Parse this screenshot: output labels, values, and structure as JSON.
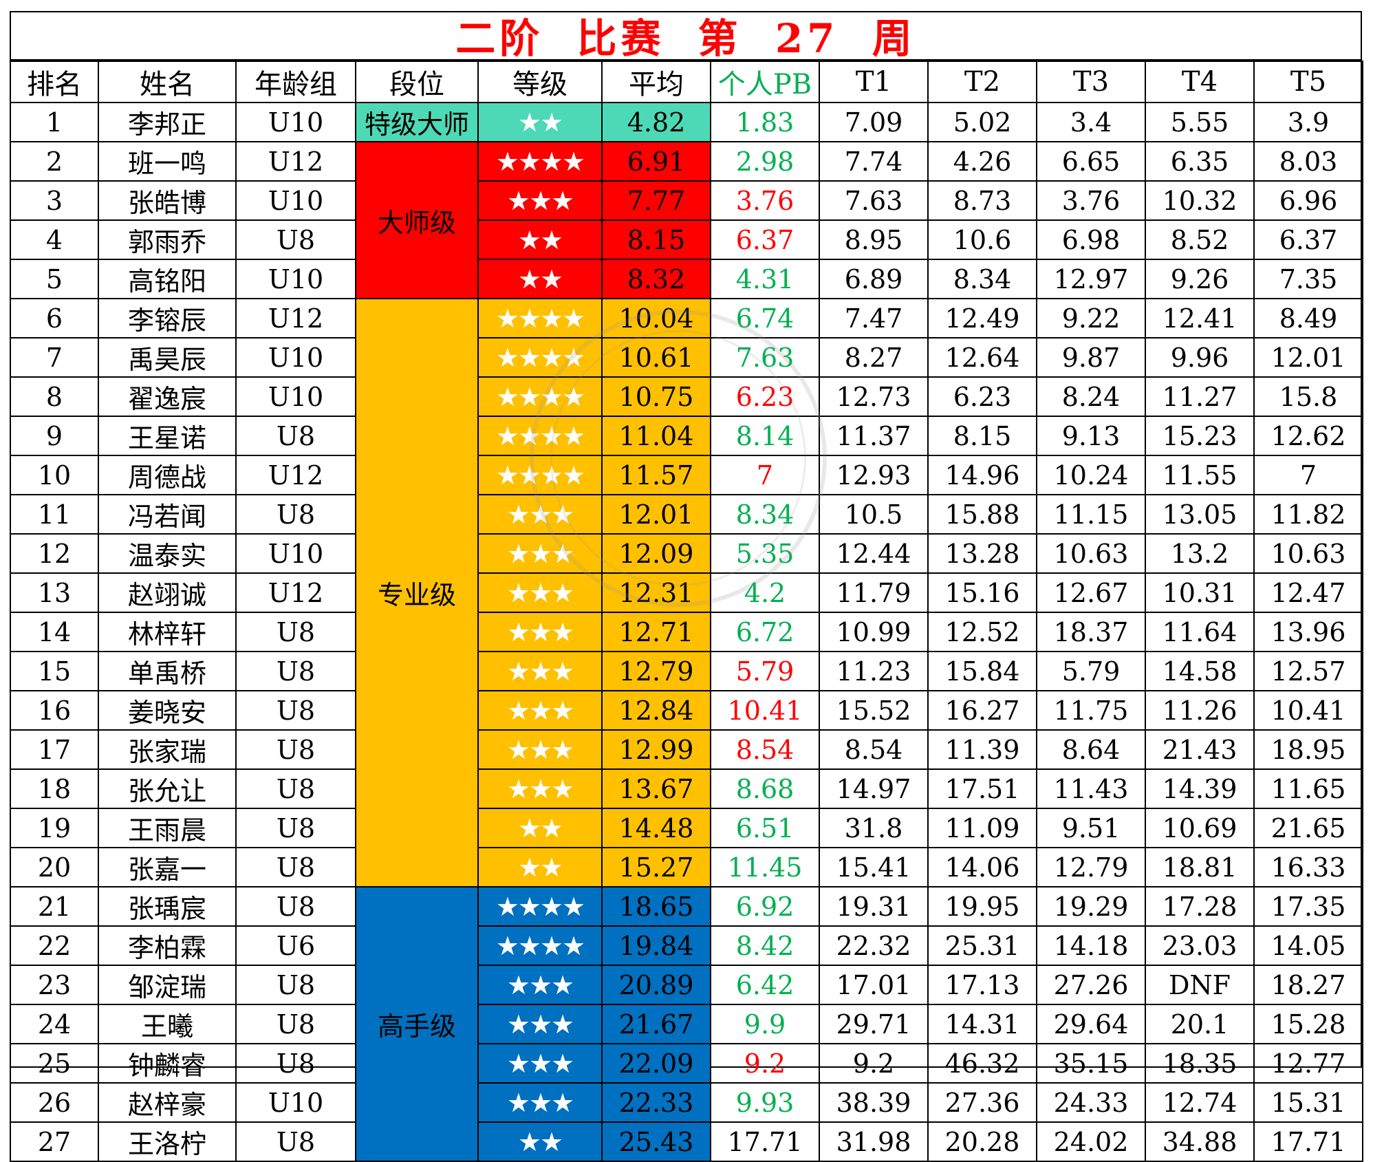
{
  "title": "二阶  比赛   第 27 周",
  "colors": {
    "teal": "#4dd9b5",
    "red": "#ff0000",
    "orange": "#ffc000",
    "blue": "#0070c0",
    "pb_green": "#00b050",
    "pb_red": "#ff0000"
  },
  "headers": [
    "排名",
    "姓名",
    "年龄组",
    "段位",
    "等级",
    "平均",
    "个人PB",
    "T1",
    "T2",
    "T3",
    "T4",
    "T5"
  ],
  "segments": [
    {
      "label": "特级大师",
      "color": "#4dd9b5",
      "rows": 1
    },
    {
      "label": "大师级",
      "color": "#ff0000",
      "rows": 4
    },
    {
      "label": "专业级",
      "color": "#ffc000",
      "rows": 15
    },
    {
      "label": "高手级",
      "color": "#0070c0",
      "rows": 7
    }
  ],
  "rows": [
    {
      "rank": "1",
      "name": "李邦正",
      "age": "U10",
      "stars": "★★",
      "avg": "4.82",
      "pb": "1.83",
      "pb_color": "green",
      "t": [
        "7.09",
        "5.02",
        "3.4",
        "5.55",
        "3.9"
      ]
    },
    {
      "rank": "2",
      "name": "班一鸣",
      "age": "U12",
      "stars": "★★★★",
      "avg": "6.91",
      "pb": "2.98",
      "pb_color": "green",
      "t": [
        "7.74",
        "4.26",
        "6.65",
        "6.35",
        "8.03"
      ]
    },
    {
      "rank": "3",
      "name": "张皓博",
      "age": "U10",
      "stars": "★★★",
      "avg": "7.77",
      "pb": "3.76",
      "pb_color": "red",
      "t": [
        "7.63",
        "8.73",
        "3.76",
        "10.32",
        "6.96"
      ]
    },
    {
      "rank": "4",
      "name": "郭雨乔",
      "age": "U8",
      "stars": "★★",
      "avg": "8.15",
      "pb": "6.37",
      "pb_color": "red",
      "t": [
        "8.95",
        "10.6",
        "6.98",
        "8.52",
        "6.37"
      ]
    },
    {
      "rank": "5",
      "name": "高铭阳",
      "age": "U10",
      "stars": "★★",
      "avg": "8.32",
      "pb": "4.31",
      "pb_color": "green",
      "t": [
        "6.89",
        "8.34",
        "12.97",
        "9.26",
        "7.35"
      ]
    },
    {
      "rank": "6",
      "name": "李镕辰",
      "age": "U12",
      "stars": "★★★★",
      "avg": "10.04",
      "pb": "6.74",
      "pb_color": "green",
      "t": [
        "7.47",
        "12.49",
        "9.22",
        "12.41",
        "8.49"
      ]
    },
    {
      "rank": "7",
      "name": "禹昊辰",
      "age": "U10",
      "stars": "★★★★",
      "avg": "10.61",
      "pb": "7.63",
      "pb_color": "green",
      "t": [
        "8.27",
        "12.64",
        "9.87",
        "9.96",
        "12.01"
      ]
    },
    {
      "rank": "8",
      "name": "翟逸宸",
      "age": "U10",
      "stars": "★★★★",
      "avg": "10.75",
      "pb": "6.23",
      "pb_color": "red",
      "t": [
        "12.73",
        "6.23",
        "8.24",
        "11.27",
        "15.8"
      ]
    },
    {
      "rank": "9",
      "name": "王星诺",
      "age": "U8",
      "stars": "★★★★",
      "avg": "11.04",
      "pb": "8.14",
      "pb_color": "green",
      "t": [
        "11.37",
        "8.15",
        "9.13",
        "15.23",
        "12.62"
      ]
    },
    {
      "rank": "10",
      "name": "周德战",
      "age": "U12",
      "stars": "★★★★",
      "avg": "11.57",
      "pb": "7",
      "pb_color": "red",
      "t": [
        "12.93",
        "14.96",
        "10.24",
        "11.55",
        "7"
      ]
    },
    {
      "rank": "11",
      "name": "冯若闻",
      "age": "U8",
      "stars": "★★★",
      "avg": "12.01",
      "pb": "8.34",
      "pb_color": "green",
      "t": [
        "10.5",
        "15.88",
        "11.15",
        "13.05",
        "11.82"
      ]
    },
    {
      "rank": "12",
      "name": "温泰实",
      "age": "U10",
      "stars": "★★★",
      "avg": "12.09",
      "pb": "5.35",
      "pb_color": "green",
      "t": [
        "12.44",
        "13.28",
        "10.63",
        "13.2",
        "10.63"
      ]
    },
    {
      "rank": "13",
      "name": "赵翊诚",
      "age": "U12",
      "stars": "★★★",
      "avg": "12.31",
      "pb": "4.2",
      "pb_color": "green",
      "t": [
        "11.79",
        "15.16",
        "12.67",
        "10.31",
        "12.47"
      ]
    },
    {
      "rank": "14",
      "name": "林梓轩",
      "age": "U8",
      "stars": "★★★",
      "avg": "12.71",
      "pb": "6.72",
      "pb_color": "green",
      "t": [
        "10.99",
        "12.52",
        "18.37",
        "11.64",
        "13.96"
      ]
    },
    {
      "rank": "15",
      "name": "单禹桥",
      "age": "U8",
      "stars": "★★★",
      "avg": "12.79",
      "pb": "5.79",
      "pb_color": "red",
      "t": [
        "11.23",
        "15.84",
        "5.79",
        "14.58",
        "12.57"
      ]
    },
    {
      "rank": "16",
      "name": "姜晓安",
      "age": "U8",
      "stars": "★★★",
      "avg": "12.84",
      "pb": "10.41",
      "pb_color": "red",
      "t": [
        "15.52",
        "16.27",
        "11.75",
        "11.26",
        "10.41"
      ]
    },
    {
      "rank": "17",
      "name": "张家瑞",
      "age": "U8",
      "stars": "★★★",
      "avg": "12.99",
      "pb": "8.54",
      "pb_color": "red",
      "t": [
        "8.54",
        "11.39",
        "8.64",
        "21.43",
        "18.95"
      ]
    },
    {
      "rank": "18",
      "name": "张允让",
      "age": "U8",
      "stars": "★★★",
      "avg": "13.67",
      "pb": "8.68",
      "pb_color": "green",
      "t": [
        "14.97",
        "17.51",
        "11.43",
        "14.39",
        "11.65"
      ]
    },
    {
      "rank": "19",
      "name": "王雨晨",
      "age": "U8",
      "stars": "★★",
      "avg": "14.48",
      "pb": "6.51",
      "pb_color": "green",
      "t": [
        "31.8",
        "11.09",
        "9.51",
        "10.69",
        "21.65"
      ]
    },
    {
      "rank": "20",
      "name": "张嘉一",
      "age": "U8",
      "stars": "★★",
      "avg": "15.27",
      "pb": "11.45",
      "pb_color": "green",
      "t": [
        "15.41",
        "14.06",
        "12.79",
        "18.81",
        "16.33"
      ]
    },
    {
      "rank": "21",
      "name": "张瑀宸",
      "age": "U8",
      "stars": "★★★★",
      "avg": "18.65",
      "pb": "6.92",
      "pb_color": "green",
      "t": [
        "19.31",
        "19.95",
        "19.29",
        "17.28",
        "17.35"
      ]
    },
    {
      "rank": "22",
      "name": "李柏霖",
      "age": "U6",
      "stars": "★★★★",
      "avg": "19.84",
      "pb": "8.42",
      "pb_color": "green",
      "t": [
        "22.32",
        "25.31",
        "14.18",
        "23.03",
        "14.05"
      ]
    },
    {
      "rank": "23",
      "name": "邹淀瑞",
      "age": "U8",
      "stars": "★★★",
      "avg": "20.89",
      "pb": "6.42",
      "pb_color": "green",
      "t": [
        "17.01",
        "17.13",
        "27.26",
        "DNF",
        "18.27"
      ]
    },
    {
      "rank": "24",
      "name": "王曦",
      "age": "U8",
      "stars": "★★★",
      "avg": "21.67",
      "pb": "9.9",
      "pb_color": "green",
      "t": [
        "29.71",
        "14.31",
        "29.64",
        "20.1",
        "15.28"
      ]
    },
    {
      "rank": "25",
      "name": "钟麟睿",
      "age": "U8",
      "stars": "★★★",
      "avg": "22.09",
      "pb": "9.2",
      "pb_color": "red",
      "t": [
        "9.2",
        "46.32",
        "35.15",
        "18.35",
        "12.77"
      ]
    },
    {
      "rank": "26",
      "name": "赵梓豪",
      "age": "U10",
      "stars": "★★★",
      "avg": "22.33",
      "pb": "9.93",
      "pb_color": "green",
      "t": [
        "38.39",
        "27.36",
        "24.33",
        "12.74",
        "15.31"
      ]
    },
    {
      "rank": "27",
      "name": "王洛柠",
      "age": "U8",
      "stars": "★★",
      "avg": "25.43",
      "pb": "17.71",
      "pb_color": "black",
      "t": [
        "31.98",
        "20.28",
        "24.02",
        "34.88",
        "17.71"
      ]
    }
  ]
}
